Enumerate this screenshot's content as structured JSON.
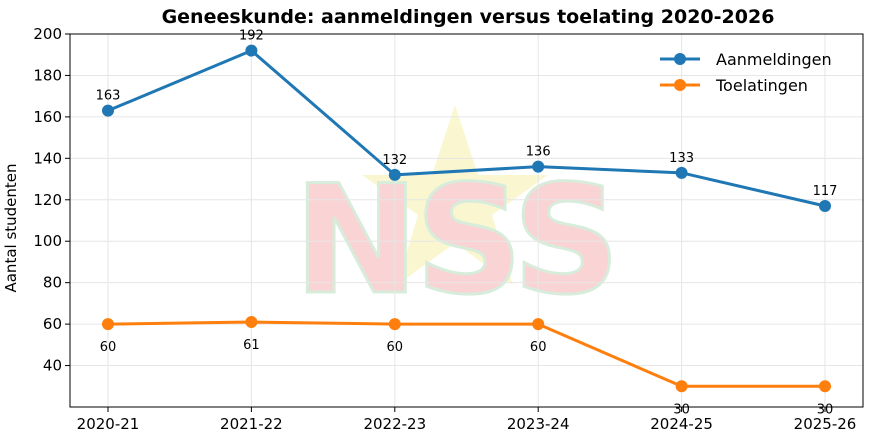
{
  "chart_data": {
    "type": "line",
    "title": "Geneeskunde: aanmeldingen versus toelating 2020-2026",
    "xlabel": "",
    "ylabel": "Aantal studenten",
    "categories": [
      "2020-21",
      "2021-22",
      "2022-23",
      "2023-24",
      "2024-25",
      "2025-26"
    ],
    "ylim": [
      20,
      200
    ],
    "yticks": [
      40,
      60,
      80,
      100,
      120,
      140,
      160,
      180,
      200
    ],
    "grid": true,
    "legend_position": "top-right",
    "series": [
      {
        "name": "Aanmeldingen",
        "color": "#1f77b4",
        "values": [
          163,
          192,
          132,
          136,
          133,
          117
        ],
        "label_placement": "above"
      },
      {
        "name": "Toelatingen",
        "color": "#ff7f0e",
        "values": [
          60,
          61,
          60,
          60,
          30,
          30
        ],
        "label_placement": "below"
      }
    ],
    "watermark": "NSS"
  }
}
